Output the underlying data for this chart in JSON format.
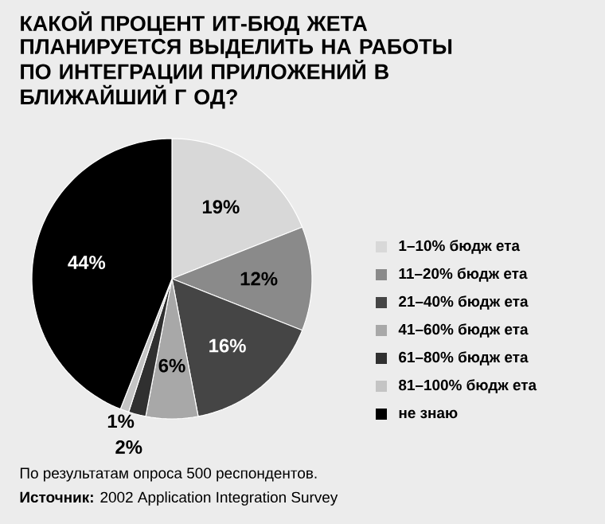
{
  "chart_data": {
    "type": "pie",
    "title": "КАКОЙ ПРОЦЕНТ ИТ-БЮД ЖЕТА ПЛАНИРУЕТСЯ ВЫДЕЛИТЬ НА РАБОТЫ ПО ИНТЕГРАЦИИ ПРИЛОЖЕНИЙ В БЛИЖАЙШИЙ Г ОД?",
    "categories": [
      "1–10% бюдж ета",
      "11–20% бюдж ета",
      "21–40% бюдж ета",
      "41–60% бюдж ета",
      "61–80% бюдж ета",
      "81–100% бюдж ета",
      "не знаю"
    ],
    "values": [
      19,
      12,
      16,
      6,
      2,
      1,
      44
    ],
    "value_labels": [
      "19%",
      "12%",
      "16%",
      "6%",
      "2%",
      "1%",
      "44%"
    ],
    "colors": [
      "#d8d8d8",
      "#8a8a8a",
      "#454545",
      "#a8a8a8",
      "#303030",
      "#c4c4c4",
      "#000000"
    ],
    "legend": "right",
    "annotations": [
      "По результатам опроса 500 респондентов.",
      "**Источник:** 2002 Application Integration Survey"
    ]
  }
}
